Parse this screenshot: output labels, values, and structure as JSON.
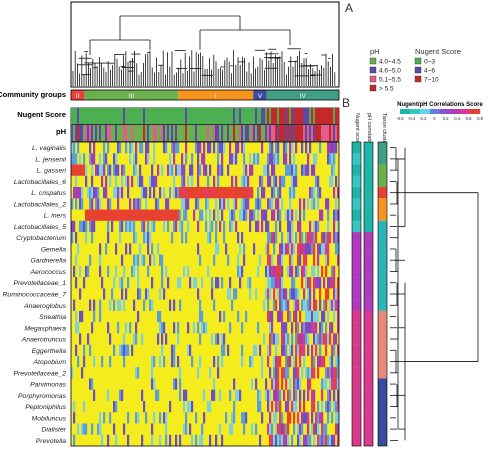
{
  "panel_labels": {
    "a": "A",
    "b": "B"
  },
  "row_labels": {
    "community": "Community groups",
    "nugent": "Nugent Score",
    "ph": "pH"
  },
  "community_groups": [
    {
      "label": "II",
      "color": "#e8413a"
    },
    {
      "label": "III",
      "color": "#6ab04c"
    },
    {
      "label": "I",
      "color": "#f7941d"
    },
    {
      "label": "V",
      "color": "#3a4a9c"
    },
    {
      "label": "IV",
      "color": "#3f9e84"
    }
  ],
  "legend_ph": {
    "title": "pH",
    "items": [
      {
        "label": "4.0~4.5",
        "color": "#6ab04c"
      },
      {
        "label": "4.6~5.0",
        "color": "#5b4aa6"
      },
      {
        "label": "5.1~5.5",
        "color": "#e35d8c"
      },
      {
        "label": "> 5.5",
        "color": "#c62828"
      }
    ]
  },
  "legend_nugent": {
    "title": "Nugent Score",
    "items": [
      {
        "label": "0~3",
        "color": "#4caf50"
      },
      {
        "label": "4~6",
        "color": "#5b4aa6"
      },
      {
        "label": "7~10",
        "color": "#c62828"
      }
    ]
  },
  "colorbar": {
    "title": "Nugent/pH Correlations Score",
    "ticks": [
      "-0.6",
      "-0.4",
      "-0.2",
      "0",
      "0.2",
      "0.4",
      "0.6",
      "0.8"
    ],
    "colors": [
      "#1fb5a6",
      "#36c7c0",
      "#5fd3e8",
      "#6c7bd8",
      "#8b4fd0",
      "#b13bbd",
      "#d93a8e",
      "#e8412f"
    ]
  },
  "side_column_labels": [
    "Nugent score correlations",
    "pH correlations",
    "Taxon clusters"
  ],
  "taxa": [
    "L. vaginalis",
    "L. jensenii",
    "L. gasseri",
    "Lactobacillales_6",
    "L. crispatus",
    "Lactobacillales_2",
    "L. iners",
    "Lactobacillales_5",
    "Cryptobacterium",
    "Gemella",
    "Gardnerella",
    "Aerococcus",
    "Prevotellaceae_1",
    "Ruminococcaceae_7",
    "Anaeroglobus",
    "Sneathia",
    "Megasphaera",
    "Anaerotruncus",
    "Eggerthella",
    "Atopobium",
    "Prevotellaceae_2",
    "Parvimonas",
    "Porphyromonas",
    "Peptoniphilus",
    "Mobiluncus",
    "Dialister",
    "Prevotella"
  ],
  "taxon_cluster_colors": [
    "#3f9e84",
    "#6ab04c",
    "#e8413a",
    "#f7941d",
    "#2bb5b8",
    "#e88a7a",
    "#3a4a9c"
  ]
}
